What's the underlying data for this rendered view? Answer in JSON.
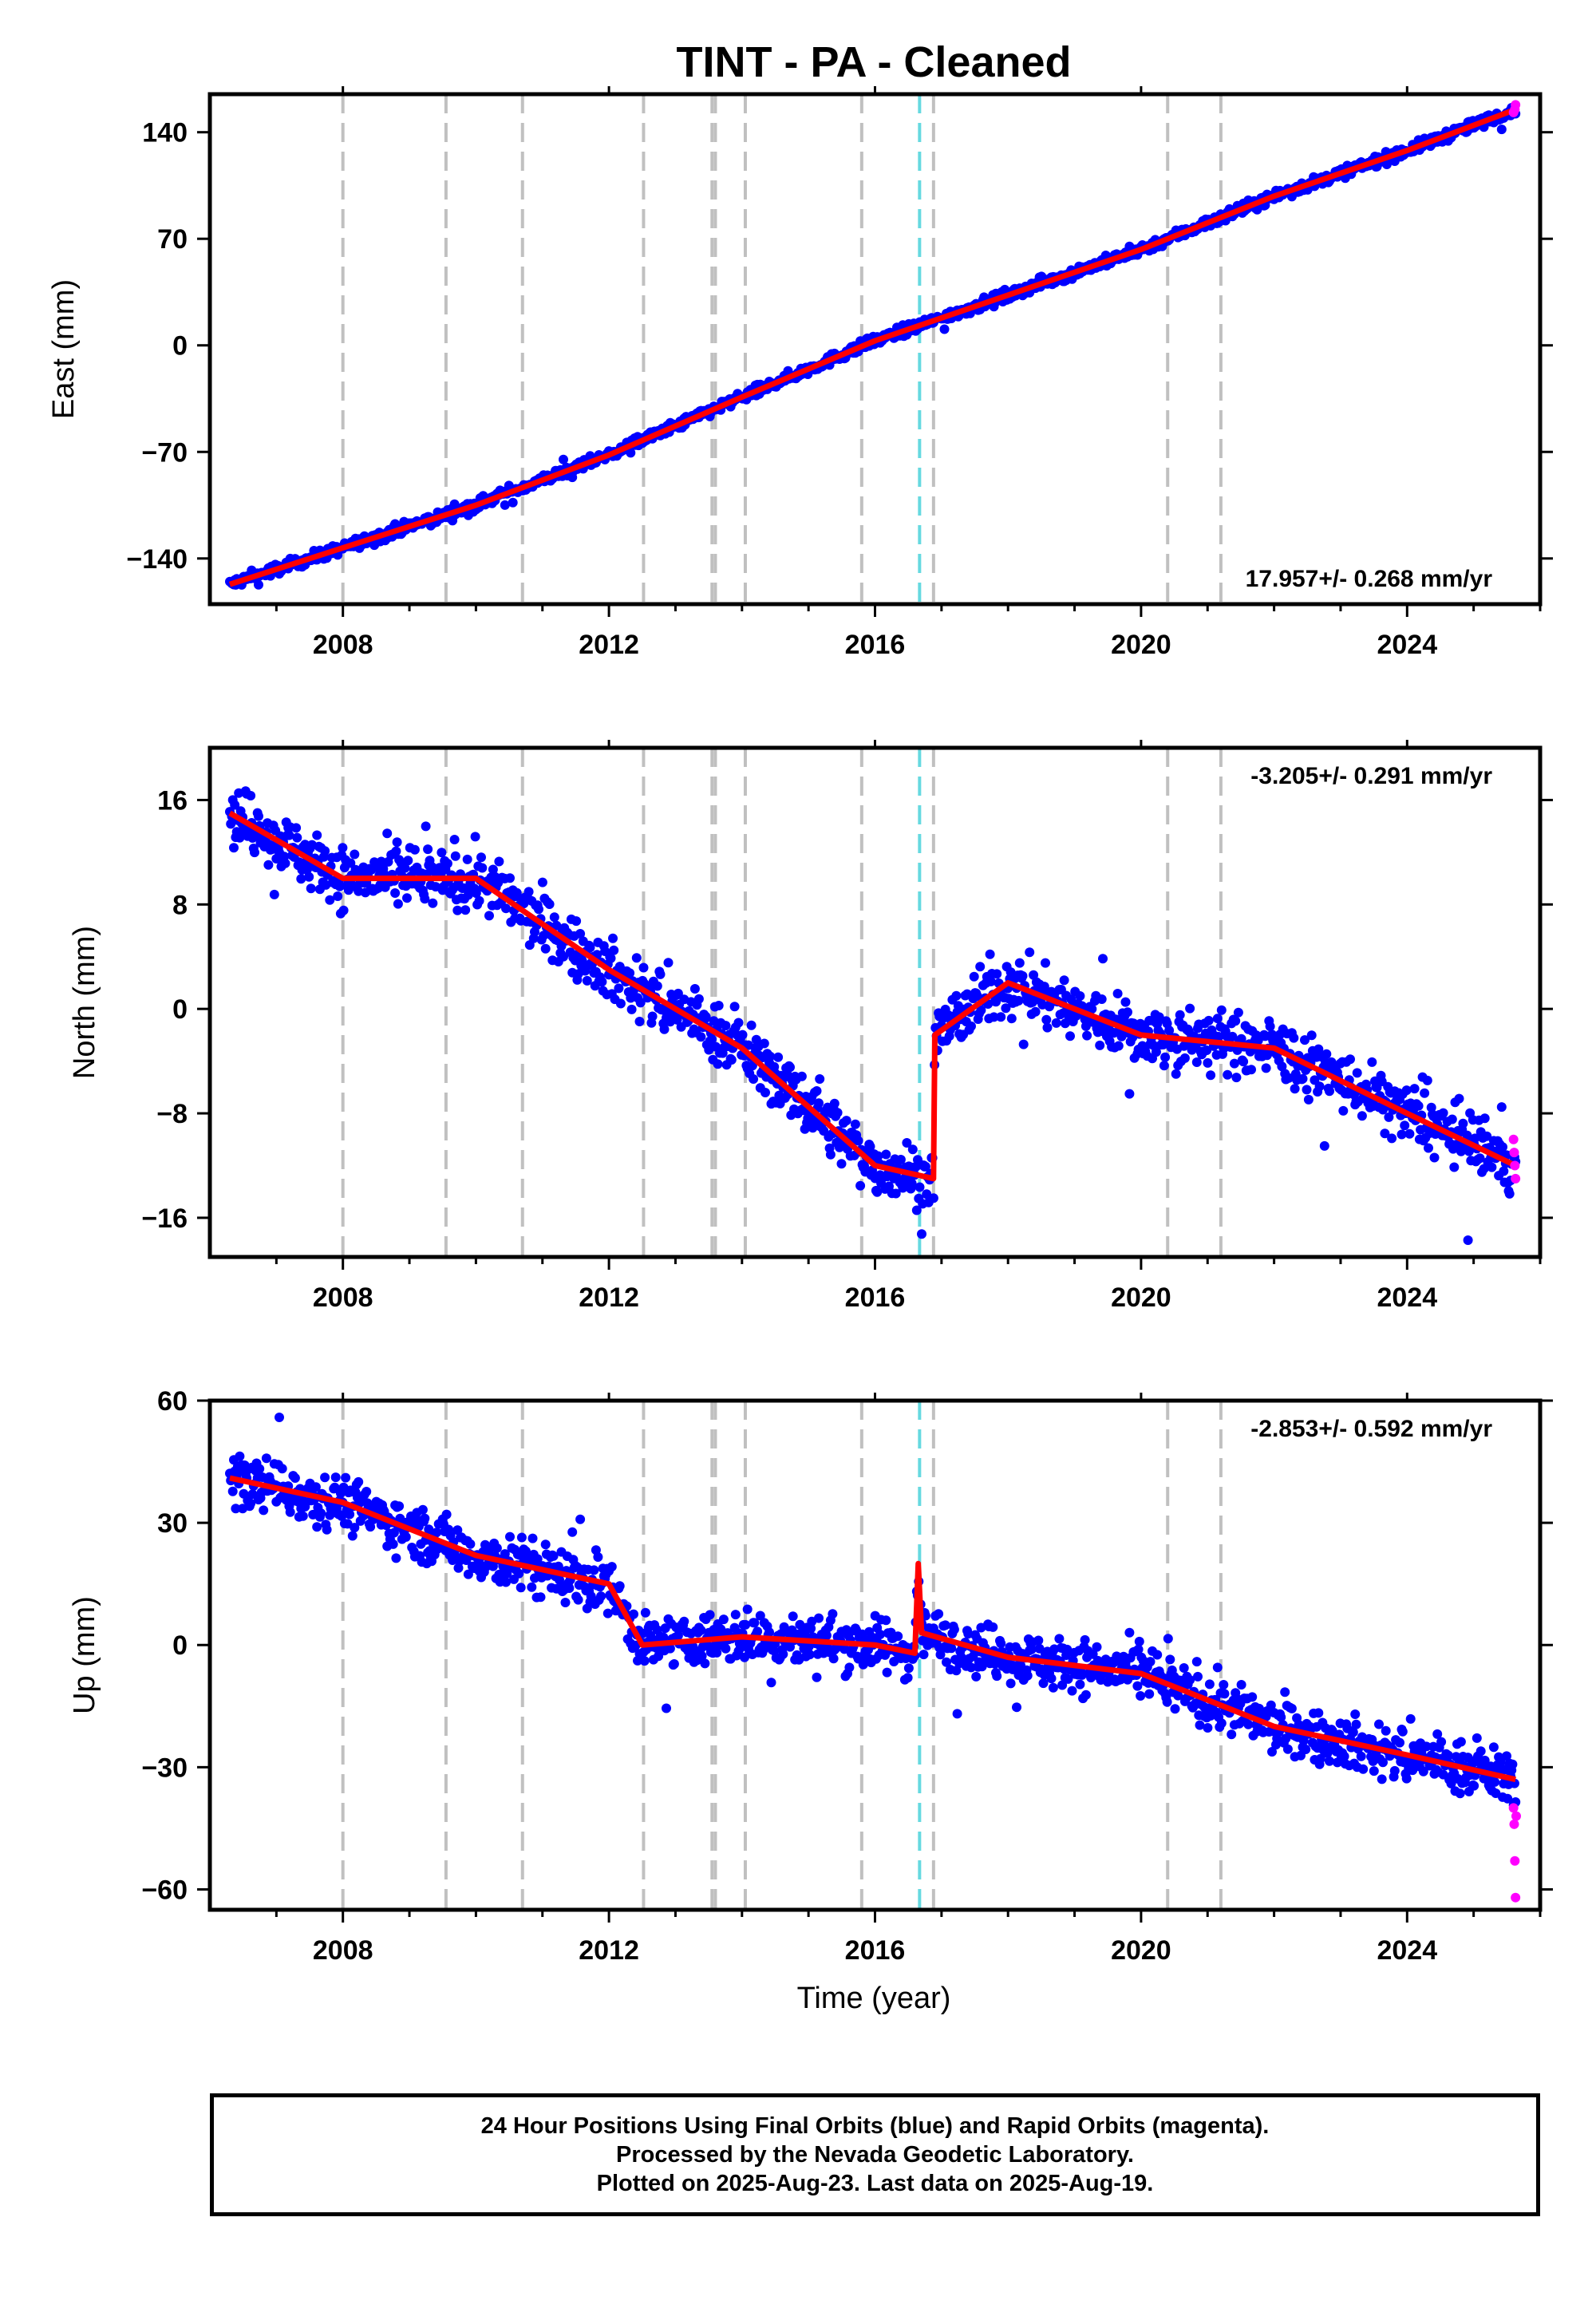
{
  "title": "TINT  - PA - Cleaned",
  "colors": {
    "final_orbits": "#0000ff",
    "rapid_orbits": "#ff00ff",
    "model": "#ff0000",
    "event_line": "#c0c0c0",
    "highlight_line": "#66d9e0"
  },
  "xlabel": "Time (year)",
  "footer": {
    "line1": "24 Hour Positions Using Final Orbits (blue) and Rapid Orbits (magenta).",
    "line2": "Processed by the Nevada Geodetic Laboratory.",
    "line3": "Plotted on 2025-Aug-23. Last data on 2025-Aug-19."
  },
  "chart_data": [
    {
      "type": "scatter",
      "component": "East",
      "ylabel": "East (mm)",
      "rate_label": "17.957+/- 0.268 mm/yr",
      "xlim": [
        2006.0,
        2026.0
      ],
      "ylim": [
        -170,
        165
      ],
      "x_ticks": [
        2008,
        2012,
        2016,
        2020,
        2024
      ],
      "y_ticks": [
        -140,
        -70,
        0,
        70,
        140
      ],
      "grid": false,
      "rate_mm_per_yr": 17.957,
      "rate_sigma_mm_per_yr": 0.268,
      "data_span": [
        2006.3,
        2025.63
      ],
      "offsets": [],
      "seasonal_amp": 1.8,
      "noise_sigma": 2.5,
      "y_at_2016": 3,
      "model": {
        "x": [
          2006.3,
          2008,
          2010,
          2012,
          2014,
          2016,
          2018,
          2020,
          2022,
          2024,
          2025.63
        ],
        "y": [
          -157,
          -133,
          -105,
          -72,
          -34,
          3,
          33,
          63,
          98,
          128,
          155
        ]
      },
      "rapid": {
        "x": [
          2025.6,
          2025.62,
          2025.63
        ],
        "y": [
          153,
          155,
          158
        ]
      }
    },
    {
      "type": "scatter",
      "component": "North",
      "ylabel": "North (mm)",
      "rate_label": "-3.205+/- 0.291 mm/yr",
      "xlim": [
        2006.0,
        2026.0
      ],
      "ylim": [
        -19,
        20
      ],
      "x_ticks": [
        2008,
        2012,
        2016,
        2020,
        2024
      ],
      "y_ticks": [
        -16,
        -8,
        0,
        8,
        16
      ],
      "grid": false,
      "rate_mm_per_yr": -3.205,
      "rate_sigma_mm_per_yr": 0.291,
      "data_span": [
        2006.3,
        2025.63
      ],
      "offsets": [
        {
          "x": 2016.88,
          "dy": 11
        }
      ],
      "seasonal_amp": 2.2,
      "noise_sigma": 1.6,
      "y_at_2016": -12,
      "model": {
        "x": [
          2006.3,
          2008,
          2010,
          2012,
          2014,
          2016,
          2016.88,
          2016.9,
          2018,
          2020,
          2022,
          2024,
          2025.63
        ],
        "y": [
          15,
          10,
          10,
          3,
          -3,
          -12,
          -13,
          -2,
          2,
          -2,
          -3,
          -8,
          -12
        ]
      },
      "rapid": {
        "x": [
          2025.6,
          2025.61,
          2025.62,
          2025.63
        ],
        "y": [
          -10,
          -11,
          -12,
          -13
        ]
      }
    },
    {
      "type": "scatter",
      "component": "Up",
      "ylabel": "Up (mm)",
      "rate_label": "-2.853+/- 0.592 mm/yr",
      "xlim": [
        2006.0,
        2026.0
      ],
      "ylim": [
        -65,
        60
      ],
      "x_ticks": [
        2008,
        2012,
        2016,
        2020,
        2024
      ],
      "y_ticks": [
        -60,
        -30,
        0,
        30,
        60
      ],
      "grid": false,
      "rate_mm_per_yr": -2.853,
      "rate_sigma_mm_per_yr": 0.592,
      "data_span": [
        2006.3,
        2025.63
      ],
      "offsets": [],
      "seasonal_amp": 3.5,
      "noise_sigma": 4.5,
      "y_at_2016": 0,
      "model": {
        "x": [
          2006.3,
          2008,
          2010,
          2012,
          2012.5,
          2014,
          2016,
          2016.6,
          2016.65,
          2016.7,
          2018,
          2020,
          2022,
          2024,
          2025.63
        ],
        "y": [
          41,
          35,
          22,
          15,
          0,
          2,
          0,
          -2,
          20,
          3,
          -3,
          -7,
          -20,
          -27,
          -33
        ]
      },
      "rapid": {
        "x": [
          2025.6,
          2025.61,
          2025.62,
          2025.63,
          2025.64
        ],
        "y": [
          -40,
          -44,
          -53,
          -62,
          -42
        ]
      }
    }
  ],
  "event_lines": [
    2008.0,
    2009.55,
    2010.7,
    2012.52,
    2013.55,
    2013.6,
    2014.05,
    2015.8,
    2016.88,
    2020.4,
    2021.2
  ],
  "highlight_line": 2016.67
}
